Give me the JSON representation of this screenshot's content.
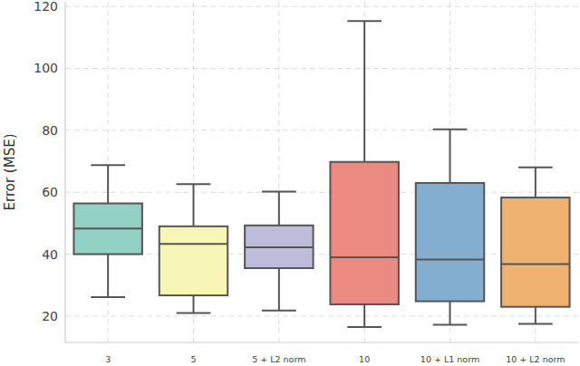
{
  "chart_data": {
    "type": "box",
    "y_label": "Error (MSE)",
    "categories": [
      "3",
      "5",
      "5 + L2 norm",
      "10",
      "10 + L1 norm",
      "10 + L2 norm"
    ],
    "stats": [
      {
        "min": 26.1,
        "q1": 40.0,
        "median": 48.3,
        "q3": 56.4,
        "max": 68.8
      },
      {
        "min": 21.0,
        "q1": 26.7,
        "median": 43.3,
        "q3": 49.0,
        "max": 62.6
      },
      {
        "min": 21.8,
        "q1": 35.5,
        "median": 42.2,
        "q3": 49.3,
        "max": 60.2
      },
      {
        "min": 16.5,
        "q1": 23.8,
        "median": 39.0,
        "q3": 69.8,
        "max": 115.3
      },
      {
        "min": 17.2,
        "q1": 24.8,
        "median": 38.3,
        "q3": 63.0,
        "max": 80.3
      },
      {
        "min": 17.5,
        "q1": 23.0,
        "median": 36.8,
        "q3": 58.3,
        "max": 68.0
      }
    ],
    "colors": [
      "#90d1c4",
      "#f7f6b6",
      "#bfbbda",
      "#ea8a80",
      "#83aed0",
      "#eeb170"
    ],
    "ylim": [
      11.5,
      121.5
    ],
    "yticks": [
      20,
      40,
      60,
      80,
      100,
      120
    ],
    "grid": true
  }
}
